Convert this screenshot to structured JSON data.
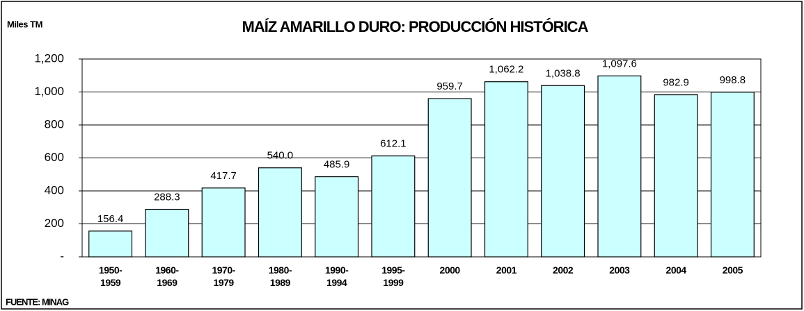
{
  "chart_data": {
    "type": "bar",
    "title": "MAÍZ AMARILLO DURO: PRODUCCIÓN HISTÓRICA",
    "y_axis_label": "Miles TM",
    "source": "FUENTE: MINAG",
    "categories": [
      "1950-\n1959",
      "1960-\n1969",
      "1970-\n1979",
      "1980-\n1989",
      "1990-\n1994",
      "1995-\n1999",
      "2000",
      "2001",
      "2002",
      "2003",
      "2004",
      "2005"
    ],
    "values": [
      156.4,
      288.3,
      417.7,
      540.0,
      485.9,
      612.1,
      959.7,
      1062.2,
      1038.8,
      1097.6,
      982.9,
      998.8
    ],
    "value_labels": [
      "156.4",
      "288.3",
      "417.7",
      "540.0",
      "485.9",
      "612.1",
      "959.7",
      "1,062.2",
      "1,038.8",
      "1,097.6",
      "982.9",
      "998.8"
    ],
    "color": "#ccffff",
    "ylim": [
      0,
      1200
    ],
    "yticks": [
      {
        "value": 0,
        "label": "-"
      },
      200,
      400,
      600,
      800,
      {
        "value": 1000,
        "label": "1,000"
      },
      {
        "value": 1200,
        "label": "1,200"
      }
    ],
    "grid": true
  }
}
